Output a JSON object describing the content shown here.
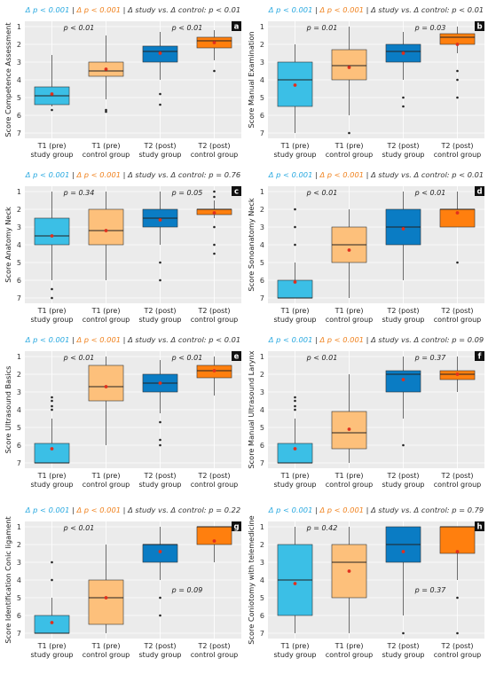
{
  "figure": {
    "x_categories": [
      "T1 (pre)\nstudy group",
      "T1 (pre)\ncontrol group",
      "T2 (post)\nstudy group",
      "T2 (post)\ncontrol group"
    ],
    "colors": {
      "study_pre": "#3bbfe6",
      "control_pre": "#fdc07b",
      "study_post": "#0a7cc4",
      "control_post": "#ff7f0e",
      "mean_marker": "#e0301e",
      "panel_bg": "#ebebeb",
      "grid": "#ffffff",
      "title_blue": "#29a9e0",
      "title_orange": "#f0821e"
    }
  },
  "chart_data": [
    {
      "panel": "a",
      "type": "box",
      "title": {
        "p1": "Δ p < 0.001",
        "p2": "Δ p < 0.001",
        "cmp": "Δ study vs. Δ control: p < 0.01"
      },
      "ylabel": "Score Competence Assessment",
      "ylim": [
        7,
        1
      ],
      "yticks": [
        1,
        2,
        3,
        4,
        5,
        6,
        7
      ],
      "annotations": [
        {
          "text": "p < 0.01",
          "between": [
            0,
            1
          ]
        },
        {
          "text": "p < 0.01",
          "between": [
            2,
            3
          ]
        }
      ],
      "boxes": [
        {
          "q1": 4.4,
          "median": 4.9,
          "q3": 5.4,
          "whislo": 2.6,
          "whishi": 5.5,
          "mean": 4.8,
          "fliers": [
            5.7
          ]
        },
        {
          "q1": 3.0,
          "median": 3.5,
          "q3": 3.8,
          "whislo": 1.5,
          "whishi": 5.1,
          "mean": 3.4,
          "fliers": [
            5.7,
            5.8
          ]
        },
        {
          "q1": 2.1,
          "median": 2.4,
          "q3": 3.0,
          "whislo": 1.3,
          "whishi": 4.0,
          "mean": 2.5,
          "fliers": [
            4.8,
            5.4
          ]
        },
        {
          "q1": 1.6,
          "median": 1.8,
          "q3": 2.2,
          "whislo": 1.2,
          "whishi": 2.9,
          "mean": 1.9,
          "fliers": [
            3.5
          ]
        }
      ]
    },
    {
      "panel": "b",
      "type": "box",
      "title": {
        "p1": "Δ p < 0.001",
        "p2": "Δ p < 0.001",
        "cmp": "Δ study vs. Δ control: p < 0.01"
      },
      "ylabel": "Score Manual Examination",
      "ylim": [
        7,
        1
      ],
      "yticks": [
        1,
        2,
        3,
        4,
        5,
        6,
        7
      ],
      "annotations": [
        {
          "text": "p = 0.01",
          "between": [
            0,
            1
          ]
        },
        {
          "text": "p = 0.03",
          "between": [
            2,
            3
          ]
        }
      ],
      "boxes": [
        {
          "q1": 3.0,
          "median": 4.0,
          "q3": 5.5,
          "whislo": 2.0,
          "whishi": 7.0,
          "mean": 4.3,
          "fliers": []
        },
        {
          "q1": 2.3,
          "median": 3.2,
          "q3": 4.0,
          "whislo": 1.0,
          "whishi": 6.0,
          "mean": 3.3,
          "fliers": [
            7.0
          ]
        },
        {
          "q1": 2.0,
          "median": 2.4,
          "q3": 3.0,
          "whislo": 1.3,
          "whishi": 4.0,
          "mean": 2.5,
          "fliers": [
            5.0,
            5.5
          ]
        },
        {
          "q1": 1.4,
          "median": 1.6,
          "q3": 2.0,
          "whislo": 1.0,
          "whishi": 2.5,
          "mean": 2.0,
          "fliers": [
            3.5,
            4.0,
            5.0
          ]
        }
      ]
    },
    {
      "panel": "c",
      "type": "box",
      "title": {
        "p1": "Δ p < 0.001",
        "p2": "Δ p < 0.001",
        "cmp": "Δ study vs. Δ control: p = 0.76"
      },
      "ylabel": "Score Anatomy Neck",
      "ylim": [
        7,
        1
      ],
      "yticks": [
        1,
        2,
        3,
        4,
        5,
        6,
        7
      ],
      "annotations": [
        {
          "text": "p = 0.34",
          "between": [
            0,
            1
          ]
        },
        {
          "text": "p = 0.05",
          "between": [
            2,
            3
          ]
        }
      ],
      "boxes": [
        {
          "q1": 2.5,
          "median": 3.5,
          "q3": 4.0,
          "whislo": 1.0,
          "whishi": 6.0,
          "mean": 3.5,
          "fliers": [
            6.5,
            7.0
          ]
        },
        {
          "q1": 2.0,
          "median": 3.2,
          "q3": 4.0,
          "whislo": 1.0,
          "whishi": 6.0,
          "mean": 3.2,
          "fliers": []
        },
        {
          "q1": 2.0,
          "median": 2.5,
          "q3": 3.0,
          "whislo": 1.0,
          "whishi": 4.0,
          "mean": 2.6,
          "fliers": [
            5.0,
            6.0
          ]
        },
        {
          "q1": 2.0,
          "median": 2.0,
          "q3": 2.3,
          "whislo": 1.5,
          "whishi": 2.5,
          "mean": 2.2,
          "fliers": [
            1.0,
            1.3,
            3.0,
            4.0,
            4.5
          ]
        }
      ]
    },
    {
      "panel": "d",
      "type": "box",
      "title": {
        "p1": "Δ p < 0.001",
        "p2": "Δ p < 0.001",
        "cmp": "Δ study vs. Δ control: p < 0.01"
      },
      "ylabel": "Score Sonoanatomy Neck",
      "ylim": [
        7,
        1
      ],
      "yticks": [
        1,
        2,
        3,
        4,
        5,
        6,
        7
      ],
      "annotations": [
        {
          "text": "p < 0.01",
          "between": [
            0,
            1
          ]
        },
        {
          "text": "p < 0.01",
          "between": [
            2,
            3
          ]
        }
      ],
      "boxes": [
        {
          "q1": 6.0,
          "median": 7.0,
          "q3": 7.0,
          "whislo": 5.0,
          "whishi": 7.0,
          "mean": 6.1,
          "fliers": [
            2.0,
            3.0,
            4.0
          ]
        },
        {
          "q1": 3.0,
          "median": 4.0,
          "q3": 5.0,
          "whislo": 2.0,
          "whishi": 7.0,
          "mean": 4.3,
          "fliers": []
        },
        {
          "q1": 2.0,
          "median": 3.0,
          "q3": 4.0,
          "whislo": 1.0,
          "whishi": 6.0,
          "mean": 3.1,
          "fliers": []
        },
        {
          "q1": 2.0,
          "median": 2.0,
          "q3": 3.0,
          "whislo": 1.0,
          "whishi": 3.0,
          "mean": 2.2,
          "fliers": [
            5.0
          ]
        }
      ]
    },
    {
      "panel": "e",
      "type": "box",
      "title": {
        "p1": "Δ p < 0.001",
        "p2": "Δ p < 0.001",
        "cmp": "Δ study vs. Δ control: p < 0.01"
      },
      "ylabel": "Score Ultrasound Basics",
      "ylim": [
        7,
        1
      ],
      "yticks": [
        1,
        2,
        3,
        4,
        5,
        6,
        7
      ],
      "annotations": [
        {
          "text": "p < 0.01",
          "between": [
            0,
            1
          ]
        },
        {
          "text": "p < 0.01",
          "between": [
            2,
            3
          ]
        }
      ],
      "boxes": [
        {
          "q1": 5.9,
          "median": 7.0,
          "q3": 7.0,
          "whislo": 4.5,
          "whishi": 7.0,
          "mean": 6.2,
          "fliers": [
            3.3,
            3.5,
            3.8,
            4.0
          ]
        },
        {
          "q1": 1.5,
          "median": 2.7,
          "q3": 3.5,
          "whislo": 1.0,
          "whishi": 6.0,
          "mean": 2.7,
          "fliers": []
        },
        {
          "q1": 2.0,
          "median": 2.5,
          "q3": 3.0,
          "whislo": 1.2,
          "whishi": 4.2,
          "mean": 2.5,
          "fliers": [
            4.7,
            5.7,
            6.0
          ]
        },
        {
          "q1": 1.5,
          "median": 1.8,
          "q3": 2.2,
          "whislo": 1.0,
          "whishi": 3.2,
          "mean": 1.8,
          "fliers": []
        }
      ]
    },
    {
      "panel": "f",
      "type": "box",
      "title": {
        "p1": "Δ p < 0.001",
        "p2": "Δ p < 0.001",
        "cmp": "Δ study vs. Δ control: p = 0.09"
      },
      "ylabel": "Score Manual Ultrasound Larynx",
      "ylim": [
        7,
        1
      ],
      "yticks": [
        1,
        2,
        3,
        4,
        5,
        6,
        7
      ],
      "annotations": [
        {
          "text": "p < 0.01",
          "between": [
            0,
            1
          ]
        },
        {
          "text": "p = 0.37",
          "between": [
            2,
            3
          ]
        }
      ],
      "boxes": [
        {
          "q1": 5.9,
          "median": 7.0,
          "q3": 7.0,
          "whislo": 4.5,
          "whishi": 7.0,
          "mean": 6.2,
          "fliers": [
            3.3,
            3.5,
            3.8,
            4.0
          ]
        },
        {
          "q1": 4.1,
          "median": 5.3,
          "q3": 6.2,
          "whislo": 2.0,
          "whishi": 7.0,
          "mean": 5.1,
          "fliers": []
        },
        {
          "q1": 1.8,
          "median": 2.0,
          "q3": 3.0,
          "whislo": 1.0,
          "whishi": 4.5,
          "mean": 2.3,
          "fliers": [
            6.0
          ]
        },
        {
          "q1": 1.8,
          "median": 2.0,
          "q3": 2.3,
          "whislo": 1.0,
          "whishi": 3.0,
          "mean": 2.0,
          "fliers": []
        }
      ]
    },
    {
      "panel": "g",
      "type": "box",
      "title": {
        "p1": "Δ p < 0.001",
        "p2": "Δ p < 0.001",
        "cmp": "Δ study vs. Δ control: p = 0.22"
      },
      "ylabel": "Score Identification Conic ligament",
      "ylim": [
        7,
        1
      ],
      "yticks": [
        1,
        2,
        3,
        4,
        5,
        6,
        7
      ],
      "annotations": [
        {
          "text": "p < 0.01",
          "between": [
            0,
            1
          ]
        },
        {
          "text": "p = 0.09",
          "between": [
            2,
            3
          ]
        }
      ],
      "boxes": [
        {
          "q1": 6.0,
          "median": 7.0,
          "q3": 7.0,
          "whislo": 5.0,
          "whishi": 7.0,
          "mean": 6.4,
          "fliers": [
            3.0,
            4.0
          ]
        },
        {
          "q1": 4.0,
          "median": 5.0,
          "q3": 6.5,
          "whislo": 2.0,
          "whishi": 7.0,
          "mean": 5.0,
          "fliers": []
        },
        {
          "q1": 2.0,
          "median": 2.0,
          "q3": 3.0,
          "whislo": 1.0,
          "whishi": 4.0,
          "mean": 2.4,
          "fliers": [
            5.0,
            6.0
          ]
        },
        {
          "q1": 1.0,
          "median": 1.0,
          "q3": 2.0,
          "whislo": 1.0,
          "whishi": 3.0,
          "mean": 1.8,
          "fliers": []
        }
      ]
    },
    {
      "panel": "h",
      "type": "box",
      "title": {
        "p1": "Δ p < 0.001",
        "p2": "Δ p < 0.001",
        "cmp": "Δ study vs. Δ control: p = 0.79"
      },
      "ylabel": "Score Coniotomy with telemedicine",
      "ylim": [
        7,
        1
      ],
      "yticks": [
        1,
        2,
        3,
        4,
        5,
        6,
        7
      ],
      "annotations": [
        {
          "text": "p = 0.42",
          "between": [
            0,
            1
          ]
        },
        {
          "text": "p = 0.37",
          "between": [
            2,
            3
          ]
        }
      ],
      "boxes": [
        {
          "q1": 2.0,
          "median": 4.0,
          "q3": 6.0,
          "whislo": 1.0,
          "whishi": 7.0,
          "mean": 4.2,
          "fliers": []
        },
        {
          "q1": 2.0,
          "median": 3.0,
          "q3": 5.0,
          "whislo": 1.0,
          "whishi": 7.0,
          "mean": 3.5,
          "fliers": []
        },
        {
          "q1": 1.0,
          "median": 2.0,
          "q3": 3.0,
          "whislo": 1.0,
          "whishi": 6.0,
          "mean": 2.4,
          "fliers": [
            7.0
          ]
        },
        {
          "q1": 1.0,
          "median": 1.0,
          "q3": 2.5,
          "whislo": 1.0,
          "whishi": 4.0,
          "mean": 2.4,
          "fliers": [
            5.0,
            7.0
          ]
        }
      ]
    }
  ]
}
